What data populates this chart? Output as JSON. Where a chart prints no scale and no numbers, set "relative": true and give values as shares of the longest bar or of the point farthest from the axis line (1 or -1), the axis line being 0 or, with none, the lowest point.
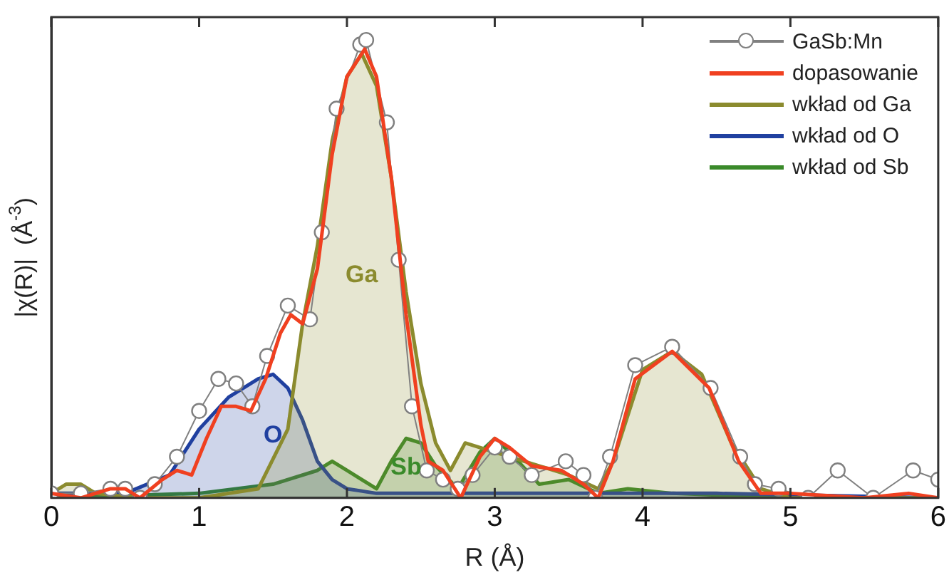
{
  "chart_data": {
    "type": "line",
    "relative": true,
    "xlabel": "R (Å)",
    "ylabel": "|χ(R)|  (Å$^{-3}$)",
    "xlim": [
      0,
      6
    ],
    "xticks": [
      0,
      1,
      2,
      3,
      4,
      5,
      6
    ],
    "legend": "top right",
    "series": [
      {
        "name": "GaSb:Mn",
        "marker": "circle",
        "color": "#808080",
        "x": [
          0,
          0.2,
          0.4,
          0.5,
          0.6,
          0.7,
          0.85,
          1.0,
          1.13,
          1.25,
          1.36,
          1.46,
          1.6,
          1.75,
          1.83,
          1.93,
          2.09,
          2.13,
          2.27,
          2.35,
          2.44,
          2.54,
          2.65,
          2.75,
          2.85,
          3.0,
          3.1,
          3.25,
          3.48,
          3.6,
          3.68,
          3.78,
          3.95,
          4.2,
          4.46,
          4.66,
          4.76,
          4.92,
          5.12,
          5.32,
          5.56,
          5.83,
          6.0
        ],
        "values": [
          0.01,
          0.01,
          0.02,
          0.02,
          0.0,
          0.03,
          0.09,
          0.19,
          0.26,
          0.25,
          0.2,
          0.31,
          0.42,
          0.39,
          0.58,
          0.85,
          0.99,
          1,
          0.82,
          0.52,
          0.2,
          0.06,
          0.04,
          0.02,
          0.05,
          0.11,
          0.09,
          0.05,
          0.08,
          0.05,
          0.0,
          0.09,
          0.29,
          0.33,
          0.24,
          0.09,
          0.03,
          0.02,
          0.0,
          0.06,
          0.0,
          0.06,
          0.04
        ]
      },
      {
        "name": "dopasowanie",
        "color": "#f04020",
        "x": [
          0,
          0.2,
          0.4,
          0.5,
          0.6,
          0.75,
          0.85,
          0.95,
          1.05,
          1.15,
          1.25,
          1.35,
          1.45,
          1.55,
          1.62,
          1.7,
          1.8,
          1.9,
          2.0,
          2.12,
          2.2,
          2.3,
          2.4,
          2.5,
          2.55,
          2.65,
          2.77,
          2.9,
          3.0,
          3.1,
          3.25,
          3.45,
          3.6,
          3.7,
          3.8,
          3.95,
          4.2,
          4.45,
          4.65,
          4.8,
          5.0,
          5.5,
          5.8,
          6.0
        ],
        "values": [
          0.01,
          0.0,
          0.02,
          0.02,
          0.0,
          0.04,
          0.06,
          0.05,
          0.13,
          0.2,
          0.2,
          0.19,
          0.26,
          0.36,
          0.4,
          0.38,
          0.5,
          0.75,
          0.92,
          0.98,
          0.92,
          0.7,
          0.4,
          0.16,
          0.08,
          0.06,
          0.0,
          0.09,
          0.13,
          0.11,
          0.07,
          0.06,
          0.03,
          0.0,
          0.08,
          0.26,
          0.32,
          0.24,
          0.08,
          0.01,
          0.01,
          0.0,
          0.01,
          0.0
        ]
      },
      {
        "name": "wkład od Ga",
        "type": "area",
        "color": "#8b8b2e",
        "x": [
          0,
          0.1,
          0.2,
          0.3,
          0.6,
          1.0,
          1.4,
          1.6,
          1.7,
          1.8,
          1.9,
          2.0,
          2.1,
          2.2,
          2.3,
          2.4,
          2.5,
          2.6,
          2.7,
          2.8,
          3.0,
          3.3,
          3.5,
          3.7,
          3.8,
          4.0,
          4.2,
          4.4,
          4.6,
          4.8,
          5.0,
          6.0
        ],
        "values": [
          0.01,
          0.03,
          0.03,
          0.01,
          0.0,
          0.0,
          0.02,
          0.15,
          0.38,
          0.55,
          0.78,
          0.92,
          0.97,
          0.9,
          0.7,
          0.45,
          0.25,
          0.12,
          0.06,
          0.12,
          0.1,
          0.07,
          0.05,
          0.02,
          0.08,
          0.28,
          0.32,
          0.27,
          0.12,
          0.02,
          0.0,
          0.0
        ]
      },
      {
        "name": "wkład od O",
        "type": "area",
        "color": "#2040a0",
        "x": [
          0,
          0.5,
          0.8,
          1.0,
          1.2,
          1.4,
          1.5,
          1.6,
          1.7,
          1.8,
          1.9,
          2.0,
          2.2,
          4.5,
          6.0
        ],
        "values": [
          0.01,
          0.01,
          0.05,
          0.15,
          0.22,
          0.26,
          0.27,
          0.24,
          0.17,
          0.08,
          0.04,
          0.02,
          0.01,
          0.01,
          0.0
        ]
      },
      {
        "name": "wkład od Sb",
        "type": "area",
        "color": "#3a8a2a",
        "x": [
          0,
          1.0,
          1.5,
          1.8,
          1.9,
          2.0,
          2.2,
          2.3,
          2.4,
          2.5,
          2.6,
          2.75,
          2.9,
          3.0,
          3.1,
          3.3,
          3.5,
          3.7,
          3.9,
          4.2,
          5.0,
          6.0
        ],
        "values": [
          0.0,
          0.01,
          0.03,
          0.06,
          0.08,
          0.06,
          0.02,
          0.08,
          0.13,
          0.12,
          0.07,
          0.02,
          0.1,
          0.13,
          0.1,
          0.03,
          0.04,
          0.01,
          0.02,
          0.01,
          0.0,
          0.0
        ]
      }
    ],
    "annotations": [
      "Ga",
      "O",
      "Sb"
    ]
  }
}
